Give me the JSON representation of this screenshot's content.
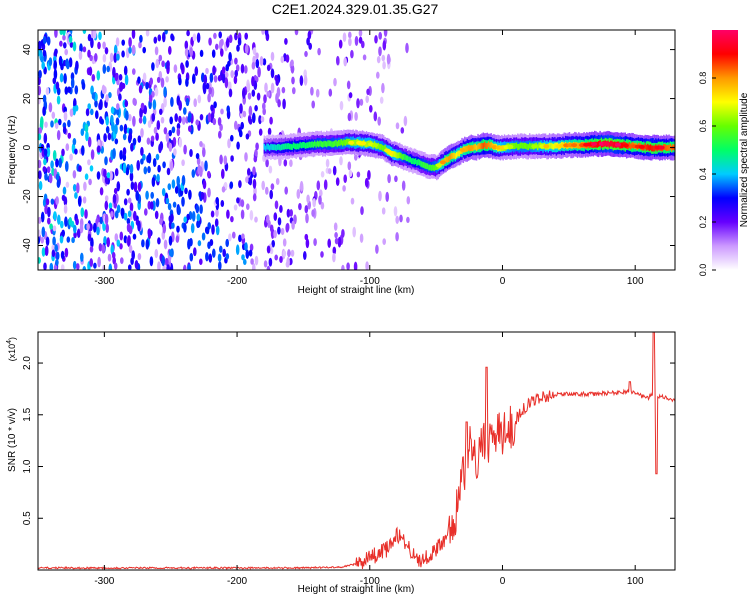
{
  "figure_title": "C2E1.2024.329.01.35.G27",
  "chart_data": [
    {
      "type": "heatmap",
      "xlabel": "Height of straight line (km)",
      "ylabel": "Frequency (Hz)",
      "xlim": [
        -350,
        130
      ],
      "ylim": [
        -50,
        48
      ],
      "x_ticks": [
        -300,
        -200,
        -100,
        0,
        100
      ],
      "y_ticks": [
        -40,
        -20,
        0,
        20,
        40
      ],
      "colorbar": {
        "label": "Normalized spectral amplitude",
        "ticks": [
          0.0,
          0.2,
          0.4,
          0.6,
          0.8
        ],
        "range": [
          0,
          1
        ],
        "colors": [
          "#ffffff",
          "#cc99ff",
          "#6600ff",
          "#0000ff",
          "#00ccff",
          "#00ff66",
          "#66ff00",
          "#ffff00",
          "#ff9900",
          "#ff0000",
          "#ff0066"
        ]
      },
      "ridge": {
        "x": [
          -180,
          -170,
          -160,
          -150,
          -140,
          -130,
          -120,
          -110,
          -100,
          -90,
          -85,
          -80,
          -75,
          -70,
          -65,
          -60,
          -55,
          -50,
          -45,
          -40,
          -35,
          -30,
          -25,
          -20,
          -15,
          -10,
          -5,
          0,
          10,
          20,
          30,
          40,
          50,
          60,
          70,
          80,
          90,
          100,
          110,
          120,
          130
        ],
        "freq": [
          0,
          0,
          0.5,
          1,
          1.5,
          1.5,
          2,
          2,
          1.5,
          0,
          -2,
          -3,
          -4,
          -5,
          -6,
          -7,
          -8,
          -8,
          -6,
          -4,
          -3,
          -1,
          0,
          0,
          1,
          1,
          0,
          0,
          0.5,
          0.5,
          0.5,
          0.5,
          1,
          1,
          1.5,
          1.5,
          1,
          0.5,
          0,
          0,
          0
        ],
        "amplitude": [
          0.4,
          0.45,
          0.5,
          0.5,
          0.55,
          0.55,
          0.6,
          0.65,
          0.65,
          0.6,
          0.7,
          0.65,
          0.55,
          0.5,
          0.5,
          0.55,
          0.55,
          0.6,
          0.75,
          0.8,
          0.7,
          0.75,
          0.8,
          0.75,
          0.85,
          0.8,
          0.7,
          0.65,
          0.6,
          0.6,
          0.65,
          0.7,
          0.75,
          0.8,
          0.9,
          0.95,
          0.9,
          0.8,
          0.9,
          0.85,
          0.8
        ]
      },
      "noise_region": {
        "x": [
          -350,
          -100
        ],
        "note_amplitude_range": [
          0.05,
          0.35
        ]
      },
      "diagonal_feature": {
        "x": [
          -350,
          -200
        ],
        "freq": [
          40,
          -50
        ]
      }
    },
    {
      "type": "line",
      "xlabel": "Height of straight line (km)",
      "ylabel": "SNR (10 * v/v)",
      "y_multiplier": "(x10",
      "y_multiplier_exp": "4",
      "xlim": [
        -350,
        130
      ],
      "ylim": [
        0,
        2.3
      ],
      "x_ticks": [
        -300,
        -200,
        -100,
        0,
        100
      ],
      "y_ticks": [
        0.5,
        1.0,
        1.5,
        2.0
      ],
      "line_color": "#e8302a",
      "series": [
        {
          "x": [
            -350,
            -300,
            -250,
            -200,
            -150,
            -120,
            -110,
            -100,
            -95,
            -90,
            -85,
            -80,
            -75,
            -70,
            -65,
            -60,
            -55,
            -50,
            -45,
            -40,
            -35,
            -30,
            -25,
            -20,
            -15,
            -10,
            -5,
            0,
            5,
            10,
            15,
            20,
            25,
            30,
            35,
            40,
            50,
            60,
            70,
            80,
            90,
            95,
            100,
            105,
            110,
            112,
            115,
            120,
            125,
            130
          ],
          "values": [
            0.02,
            0.02,
            0.02,
            0.02,
            0.02,
            0.03,
            0.06,
            0.12,
            0.15,
            0.18,
            0.22,
            0.35,
            0.3,
            0.2,
            0.1,
            0.1,
            0.15,
            0.2,
            0.25,
            0.4,
            0.55,
            0.9,
            1.2,
            1.0,
            1.3,
            1.2,
            1.35,
            1.3,
            1.35,
            1.45,
            1.55,
            1.6,
            1.65,
            1.68,
            1.68,
            1.7,
            1.7,
            1.7,
            1.7,
            1.71,
            1.72,
            1.72,
            1.72,
            1.68,
            1.66,
            1.7,
            1.67,
            1.68,
            1.65,
            1.63
          ]
        }
      ],
      "spikes": [
        {
          "x": -27,
          "value": 1.43
        },
        {
          "x": -12,
          "value": 1.96
        },
        {
          "x": 96,
          "value": 1.82
        },
        {
          "x": 114,
          "value": 2.3
        },
        {
          "x": 116,
          "value": 0.93
        }
      ]
    }
  ]
}
